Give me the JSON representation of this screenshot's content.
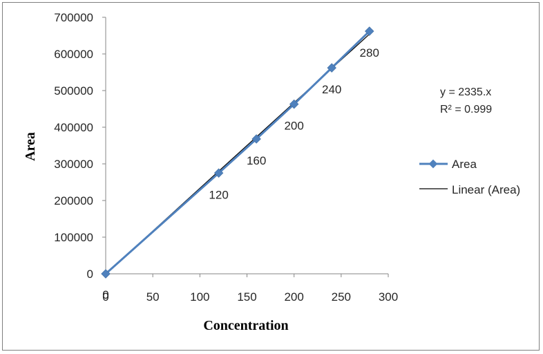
{
  "chart_data": {
    "type": "scatter",
    "title": "",
    "xlabel": "Concentration",
    "ylabel": "Area",
    "xlim": [
      0,
      300
    ],
    "ylim": [
      0,
      700000
    ],
    "xticks": [
      "0",
      "50",
      "100",
      "150",
      "200",
      "250",
      "300"
    ],
    "yticks": [
      "0",
      "100000",
      "200000",
      "300000",
      "400000",
      "500000",
      "600000",
      "700000"
    ],
    "series": [
      {
        "name": "Area",
        "color": "#4f81bd",
        "marker": "diamond",
        "x": [
          0,
          120,
          160,
          200,
          240,
          280
        ],
        "y": [
          0,
          275000,
          368000,
          463000,
          562000,
          662000
        ],
        "data_labels": [
          "0",
          "120",
          "160",
          "200",
          "240",
          "280"
        ]
      }
    ],
    "trendline": {
      "name": "Linear (Area)",
      "type": "linear",
      "color": "#000000",
      "slope": 2335,
      "intercept": 0,
      "equation_text": "y = 2335.x",
      "r2_text": "R² = 0.999"
    },
    "legend": "right",
    "grid": false
  }
}
